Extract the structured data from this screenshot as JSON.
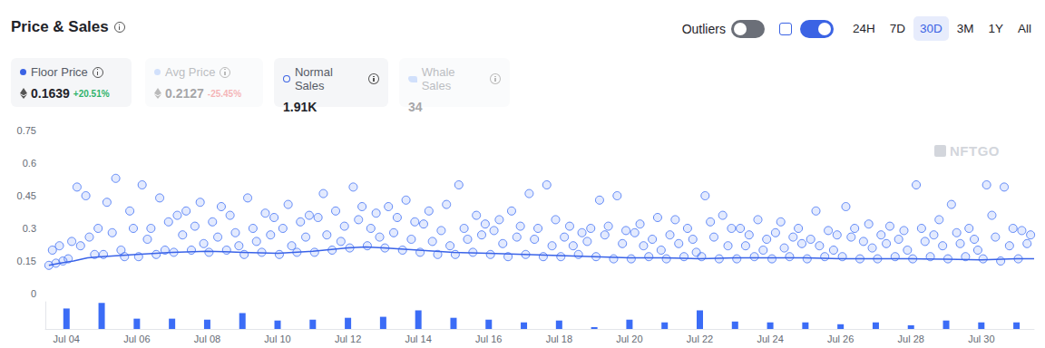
{
  "header": {
    "title": "Price & Sales",
    "toggle_label": "Outliers",
    "range_buttons": [
      "24H",
      "7D",
      "30D",
      "3M",
      "1Y",
      "All"
    ],
    "cards": [
      {
        "label": "Floor Price",
        "value": "0.1639",
        "change": "+20.51%"
      },
      {
        "label": "Avg Price",
        "value": "0.2127",
        "change": "-25.45%"
      },
      {
        "label": "Normal Sales",
        "value": "1.91K"
      },
      {
        "label": "Whale Sales",
        "value": "34"
      }
    ],
    "watermark": "NFTGO"
  },
  "chart_data": {
    "type": "scatter",
    "xlim": [
      3.4,
      31.5
    ],
    "xticks": [
      {
        "value": 4,
        "label": "Jul 04"
      },
      {
        "value": 6,
        "label": "Jul 06"
      },
      {
        "value": 8,
        "label": "Jul 08"
      },
      {
        "value": 10,
        "label": "Jul 10"
      },
      {
        "value": 12,
        "label": "Jul 12"
      },
      {
        "value": 14,
        "label": "Jul 14"
      },
      {
        "value": 16,
        "label": "Jul 16"
      },
      {
        "value": 18,
        "label": "Jul 18"
      },
      {
        "value": 20,
        "label": "Jul 20"
      },
      {
        "value": 22,
        "label": "Jul 22"
      },
      {
        "value": 24,
        "label": "Jul 24"
      },
      {
        "value": 26,
        "label": "Jul 26"
      },
      {
        "value": 28,
        "label": "Jul 28"
      },
      {
        "value": 30,
        "label": "Jul 30"
      }
    ],
    "ylim": [
      0,
      0.75
    ],
    "yticks": [
      0,
      0.15,
      0.3,
      0.45,
      0.6,
      0.75
    ],
    "y2lim": [
      0,
      190
    ],
    "grid": false,
    "series": [
      {
        "name": "Normal Sales",
        "type": "scatter",
        "color": "#3f6ff5",
        "marker": "circle",
        "x": [
          3.5,
          3.6,
          3.7,
          3.8,
          3.9,
          4.05,
          4.15,
          4.3,
          4.4,
          4.55,
          4.65,
          4.8,
          4.9,
          5.05,
          5.15,
          5.3,
          5.4,
          5.55,
          5.65,
          5.8,
          5.9,
          6.05,
          6.15,
          6.3,
          6.4,
          6.55,
          6.65,
          6.8,
          6.9,
          7.05,
          7.15,
          7.3,
          7.4,
          7.55,
          7.65,
          7.8,
          7.9,
          8.05,
          8.15,
          8.3,
          8.4,
          8.55,
          8.65,
          8.8,
          8.9,
          9.05,
          9.15,
          9.3,
          9.4,
          9.55,
          9.65,
          9.8,
          9.9,
          10.05,
          10.15,
          10.3,
          10.4,
          10.55,
          10.65,
          10.8,
          10.9,
          11.05,
          11.15,
          11.3,
          11.4,
          11.55,
          11.65,
          11.8,
          11.9,
          12.05,
          12.15,
          12.3,
          12.4,
          12.55,
          12.65,
          12.8,
          12.9,
          13.05,
          13.15,
          13.3,
          13.4,
          13.55,
          13.65,
          13.8,
          13.9,
          14.05,
          14.15,
          14.3,
          14.4,
          14.55,
          14.65,
          14.8,
          14.9,
          15.05,
          15.15,
          15.3,
          15.4,
          15.55,
          15.65,
          15.8,
          15.9,
          16.05,
          16.15,
          16.3,
          16.4,
          16.55,
          16.65,
          16.8,
          16.9,
          17.05,
          17.15,
          17.3,
          17.4,
          17.55,
          17.65,
          17.8,
          17.9,
          18.05,
          18.15,
          18.3,
          18.4,
          18.55,
          18.65,
          18.8,
          18.9,
          19.05,
          19.15,
          19.3,
          19.4,
          19.55,
          19.65,
          19.8,
          19.9,
          20.05,
          20.15,
          20.3,
          20.4,
          20.55,
          20.65,
          20.8,
          20.9,
          21.05,
          21.15,
          21.3,
          21.4,
          21.55,
          21.65,
          21.8,
          21.9,
          22.05,
          22.15,
          22.3,
          22.4,
          22.55,
          22.65,
          22.8,
          22.9,
          23.05,
          23.15,
          23.3,
          23.4,
          23.55,
          23.65,
          23.8,
          23.9,
          24.05,
          24.15,
          24.3,
          24.4,
          24.55,
          24.65,
          24.8,
          24.9,
          25.05,
          25.15,
          25.3,
          25.4,
          25.55,
          25.65,
          25.8,
          25.9,
          26.05,
          26.15,
          26.3,
          26.4,
          26.55,
          26.65,
          26.8,
          26.9,
          27.05,
          27.15,
          27.3,
          27.4,
          27.55,
          27.65,
          27.8,
          27.9,
          28.05,
          28.15,
          28.3,
          28.4,
          28.55,
          28.65,
          28.8,
          28.9,
          29.05,
          29.15,
          29.3,
          29.4,
          29.55,
          29.65,
          29.8,
          29.9,
          30.05,
          30.15,
          30.3,
          30.4,
          30.55,
          30.65,
          30.8,
          30.9,
          31.05,
          31.15,
          31.3,
          31.4
        ],
        "values": [
          0.13,
          0.2,
          0.14,
          0.22,
          0.15,
          0.16,
          0.24,
          0.49,
          0.22,
          0.45,
          0.26,
          0.18,
          0.3,
          0.18,
          0.42,
          0.28,
          0.53,
          0.2,
          0.17,
          0.38,
          0.3,
          0.17,
          0.5,
          0.25,
          0.3,
          0.18,
          0.44,
          0.2,
          0.33,
          0.19,
          0.36,
          0.27,
          0.38,
          0.2,
          0.31,
          0.42,
          0.23,
          0.19,
          0.33,
          0.26,
          0.4,
          0.2,
          0.36,
          0.28,
          0.22,
          0.18,
          0.44,
          0.3,
          0.24,
          0.19,
          0.37,
          0.27,
          0.35,
          0.18,
          0.3,
          0.41,
          0.22,
          0.19,
          0.33,
          0.26,
          0.36,
          0.19,
          0.35,
          0.46,
          0.27,
          0.2,
          0.38,
          0.24,
          0.31,
          0.21,
          0.49,
          0.34,
          0.4,
          0.22,
          0.3,
          0.37,
          0.26,
          0.21,
          0.4,
          0.28,
          0.35,
          0.2,
          0.43,
          0.25,
          0.33,
          0.19,
          0.32,
          0.38,
          0.24,
          0.18,
          0.29,
          0.41,
          0.22,
          0.18,
          0.5,
          0.3,
          0.25,
          0.19,
          0.36,
          0.27,
          0.32,
          0.18,
          0.29,
          0.34,
          0.23,
          0.17,
          0.38,
          0.26,
          0.31,
          0.18,
          0.46,
          0.25,
          0.3,
          0.17,
          0.5,
          0.22,
          0.34,
          0.17,
          0.26,
          0.31,
          0.22,
          0.18,
          0.28,
          0.24,
          0.3,
          0.17,
          0.43,
          0.27,
          0.31,
          0.16,
          0.45,
          0.23,
          0.29,
          0.16,
          0.28,
          0.32,
          0.22,
          0.17,
          0.25,
          0.35,
          0.2,
          0.16,
          0.27,
          0.34,
          0.23,
          0.17,
          0.3,
          0.25,
          0.19,
          0.17,
          0.45,
          0.33,
          0.26,
          0.16,
          0.36,
          0.22,
          0.3,
          0.16,
          0.3,
          0.22,
          0.27,
          0.17,
          0.34,
          0.2,
          0.25,
          0.16,
          0.28,
          0.33,
          0.21,
          0.17,
          0.26,
          0.3,
          0.23,
          0.16,
          0.25,
          0.38,
          0.22,
          0.17,
          0.29,
          0.2,
          0.27,
          0.17,
          0.4,
          0.26,
          0.3,
          0.16,
          0.24,
          0.32,
          0.21,
          0.16,
          0.27,
          0.23,
          0.31,
          0.17,
          0.25,
          0.29,
          0.2,
          0.16,
          0.5,
          0.3,
          0.24,
          0.17,
          0.27,
          0.34,
          0.22,
          0.16,
          0.41,
          0.28,
          0.23,
          0.17,
          0.3,
          0.25,
          0.2,
          0.16,
          0.5,
          0.36,
          0.26,
          0.15,
          0.49,
          0.22,
          0.3,
          0.16,
          0.29,
          0.23,
          0.27
        ]
      },
      {
        "name": "Floor Price",
        "type": "line",
        "color": "#3a63e8",
        "line_style": "solid",
        "x": [
          3.5,
          3.8,
          4.2,
          4.6,
          5,
          5.5,
          6,
          7,
          8,
          9,
          10,
          11,
          12,
          12.5,
          13,
          14,
          15,
          16,
          17,
          18,
          19,
          20,
          21,
          22,
          23,
          24,
          25,
          26,
          27,
          28,
          29,
          30,
          31,
          31.5
        ],
        "values": [
          0.13,
          0.14,
          0.15,
          0.165,
          0.17,
          0.175,
          0.18,
          0.19,
          0.195,
          0.19,
          0.185,
          0.195,
          0.21,
          0.215,
          0.21,
          0.2,
          0.19,
          0.185,
          0.18,
          0.175,
          0.17,
          0.165,
          0.165,
          0.16,
          0.165,
          0.165,
          0.165,
          0.16,
          0.16,
          0.16,
          0.158,
          0.155,
          0.16,
          0.16
        ]
      },
      {
        "type": "bar",
        "axis": "y2",
        "color": "#3b6cf6",
        "x": [
          4,
          5,
          6,
          7,
          8,
          9,
          10,
          11,
          12,
          13,
          14,
          15,
          16,
          17,
          18,
          19,
          20,
          21,
          22,
          23,
          24,
          25,
          26,
          27,
          28,
          29,
          30,
          31
        ],
        "values": [
          143,
          182,
          72,
          72,
          65,
          111,
          59,
          65,
          78,
          85,
          130,
          78,
          65,
          46,
          59,
          13,
          65,
          46,
          130,
          52,
          46,
          46,
          33,
          46,
          26,
          59,
          46,
          46
        ]
      }
    ]
  }
}
